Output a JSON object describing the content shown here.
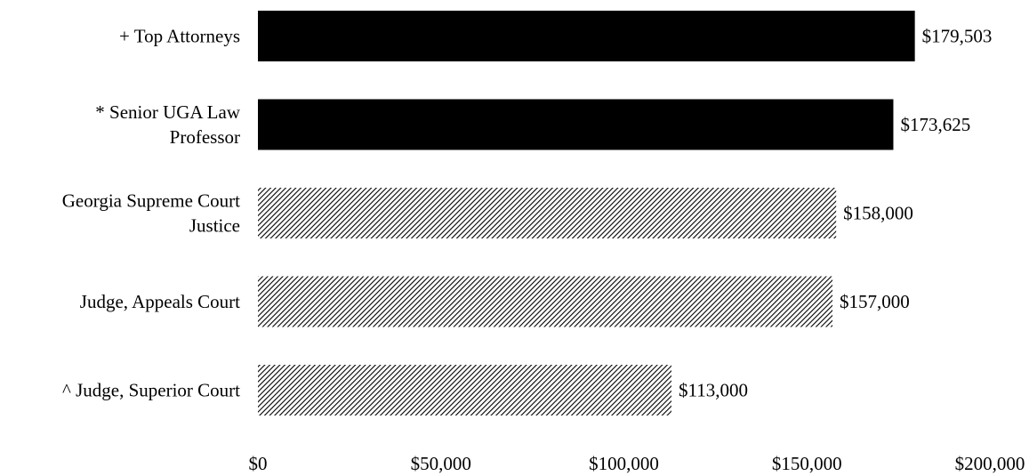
{
  "chart_data": {
    "type": "bar",
    "orientation": "horizontal",
    "categories": [
      [
        "+ Top Attorneys"
      ],
      [
        "* Senior UGA Law",
        "Professor"
      ],
      [
        "Georgia Supreme Court",
        "Justice"
      ],
      [
        "Judge, Appeals Court"
      ],
      [
        "^ Judge, Superior Court"
      ]
    ],
    "values": [
      179503,
      173625,
      158000,
      157000,
      113000
    ],
    "value_labels": [
      "$179,503",
      "$173,625",
      "$158,000",
      "$157,000",
      "$113,000"
    ],
    "bar_fills": [
      "solid",
      "solid",
      "hatched",
      "hatched",
      "hatched"
    ],
    "xlim": [
      0,
      200000
    ],
    "x_ticks": [
      0,
      50000,
      100000,
      150000,
      200000
    ],
    "x_tick_labels": [
      "$0",
      "$50,000",
      "$100,000",
      "$150,000",
      "$200,000"
    ],
    "title": "",
    "xlabel": "",
    "ylabel": "",
    "grid": false,
    "legend": "none",
    "colors": {
      "solid": "#000000",
      "hatch_line": "#000000",
      "hatch_bg": "#ffffff"
    }
  }
}
